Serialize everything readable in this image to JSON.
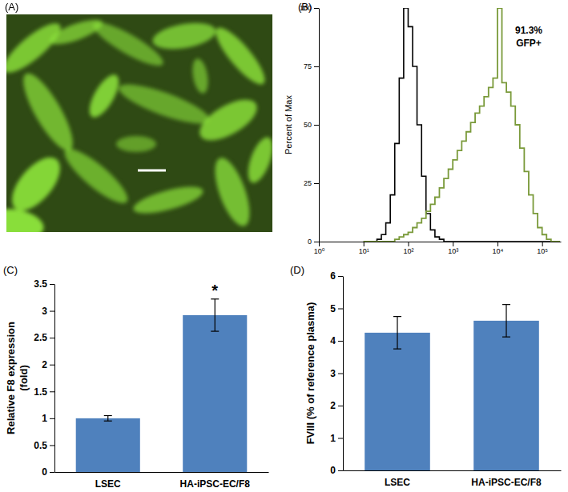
{
  "chart_data": [
    {
      "type": "image",
      "title": "(A)"
    },
    {
      "type": "line",
      "title": "(B)",
      "ylabel": "Percent of Max",
      "log": "x",
      "x": [
        10,
        12.6,
        15.8,
        20,
        25.1,
        31.6,
        39.8,
        50.1,
        63.1,
        79.4,
        100,
        126,
        158,
        200,
        251,
        316,
        398,
        501,
        631,
        794,
        1000,
        1259,
        1585,
        1995,
        2512,
        3162,
        3981,
        5012,
        6310,
        7943,
        10000,
        12589,
        15849,
        19953,
        25119,
        31623,
        39811,
        50119,
        63096,
        79433,
        100000,
        125893,
        158489,
        199526,
        251189
      ],
      "xlim": [
        1,
        262144
      ],
      "xticks": [
        {
          "value": 1,
          "label": "10⁰"
        },
        {
          "value": 10,
          "label": "10¹"
        },
        {
          "value": 100,
          "label": "10²"
        },
        {
          "value": 1000,
          "label": "10³"
        },
        {
          "value": 10000,
          "label": "10⁴"
        },
        {
          "value": 100000,
          "label": "10⁵"
        }
      ],
      "ylim": [
        0,
        100
      ],
      "yticks": [
        0,
        25,
        50,
        75,
        100
      ],
      "series": [
        {
          "color": "#000000",
          "values": [
            0,
            0,
            0,
            1,
            3,
            8,
            20,
            42,
            70,
            100,
            92,
            75,
            50,
            28,
            12,
            5,
            2,
            1,
            0,
            0,
            0,
            0,
            0,
            0,
            0,
            0,
            0,
            0,
            0,
            0,
            0,
            0,
            0,
            0,
            0,
            0,
            0,
            0,
            0,
            0,
            0,
            0,
            0,
            0,
            0
          ]
        },
        {
          "color": "#7a9a3a",
          "values": [
            0,
            0,
            0,
            0,
            0,
            0,
            0,
            1,
            2,
            3,
            4,
            6,
            8,
            10,
            13,
            16,
            19,
            23,
            27,
            31,
            35,
            39,
            43,
            47,
            51,
            55,
            58,
            62,
            66,
            70,
            100,
            68,
            64,
            58,
            50,
            40,
            30,
            20,
            12,
            6,
            3,
            1,
            0,
            0,
            0
          ]
        }
      ],
      "annotations": [
        "91.3%",
        "GFP+"
      ]
    },
    {
      "type": "bar",
      "title": "(C)",
      "categories": [
        "LSEC",
        "HA-iPSC-EC/F8"
      ],
      "values": [
        1.0,
        2.92
      ],
      "errors": [
        0.05,
        0.3
      ],
      "color": "#4f81bd",
      "ylabel": [
        "Relative F8 expression",
        "(fold)"
      ],
      "ylim": [
        0,
        3.5
      ],
      "yticks": [
        0,
        0.5,
        1,
        1.5,
        2,
        2.5,
        3,
        3.5
      ],
      "annotations": [
        {
          "text": "*",
          "category": "HA-iPSC-EC/F8"
        }
      ]
    },
    {
      "type": "bar",
      "title": "(D)",
      "categories": [
        "LSEC",
        "HA-iPSC-EC/F8"
      ],
      "values": [
        4.25,
        4.62
      ],
      "errors": [
        0.5,
        0.5
      ],
      "color": "#4f81bd",
      "ylabel": [
        "FVIII (% of reference plasma)"
      ],
      "ylim": [
        0,
        6
      ],
      "yticks": [
        0,
        1,
        2,
        3,
        4,
        5,
        6
      ]
    }
  ]
}
